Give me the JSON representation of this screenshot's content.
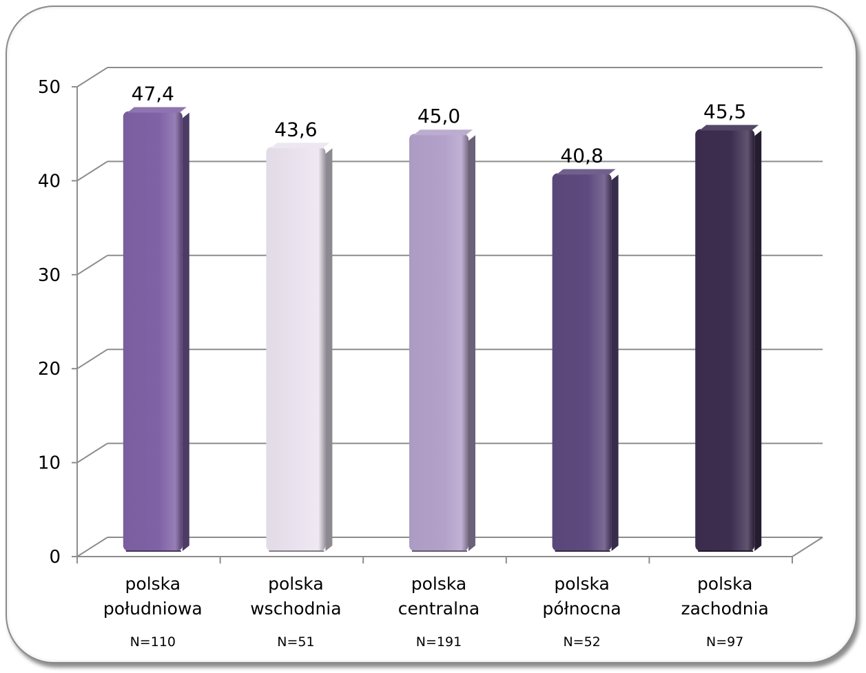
{
  "chart_data": {
    "type": "bar",
    "categories": [
      [
        "polska",
        "południowa"
      ],
      [
        "polska",
        "wschodnia"
      ],
      [
        "polska",
        "centralna"
      ],
      [
        "polska",
        "północna"
      ],
      [
        "polska",
        "zachodnia"
      ]
    ],
    "sample_sizes": [
      "N=110",
      "N=51",
      "N=191",
      "N=52",
      "N=97"
    ],
    "values": [
      47.4,
      43.6,
      45.0,
      40.8,
      45.5
    ],
    "value_labels": [
      "47,4",
      "43,6",
      "45,0",
      "40,8",
      "45,5"
    ],
    "bar_colors": [
      "#7f62a6",
      "#ebe4f0",
      "#b3a1ca",
      "#5e4a7e",
      "#3d2e50"
    ],
    "ylim": [
      0,
      50
    ],
    "yticks": [
      "0",
      "10",
      "20",
      "30",
      "40",
      "50"
    ],
    "grid": true,
    "title": "",
    "xlabel": "",
    "ylabel": ""
  }
}
